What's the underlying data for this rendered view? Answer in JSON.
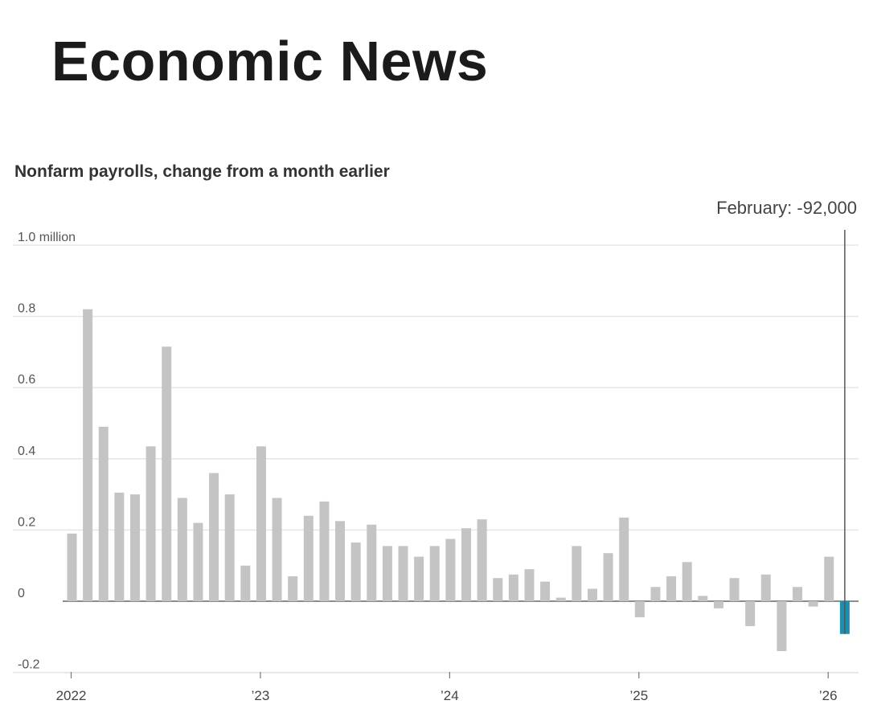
{
  "page": {
    "heading": "Economic News"
  },
  "chart_data": {
    "type": "bar",
    "title": "Nonfarm payrolls, change from a month earlier",
    "xlabel": "",
    "ylabel": "",
    "ylim": [
      -0.2,
      1.0
    ],
    "yticks": [
      {
        "value": 1.0,
        "label": "1.0 million"
      },
      {
        "value": 0.8,
        "label": "0.8"
      },
      {
        "value": 0.6,
        "label": "0.6"
      },
      {
        "value": 0.4,
        "label": "0.4"
      },
      {
        "value": 0.2,
        "label": "0.2"
      },
      {
        "value": 0,
        "label": "0"
      },
      {
        "value": -0.2,
        "label": "-0.2"
      }
    ],
    "xticks": [
      {
        "index": 0,
        "label": "2022"
      },
      {
        "index": 12,
        "label": "’23"
      },
      {
        "index": 24,
        "label": "’24"
      },
      {
        "index": 36,
        "label": "’25"
      },
      {
        "index": 48,
        "label": "’26"
      }
    ],
    "categories": [
      "Jan 2022",
      "Feb 2022",
      "Mar 2022",
      "Apr 2022",
      "May 2022",
      "Jun 2022",
      "Jul 2022",
      "Aug 2022",
      "Sep 2022",
      "Oct 2022",
      "Nov 2022",
      "Dec 2022",
      "Jan 2023",
      "Feb 2023",
      "Mar 2023",
      "Apr 2023",
      "May 2023",
      "Jun 2023",
      "Jul 2023",
      "Aug 2023",
      "Sep 2023",
      "Oct 2023",
      "Nov 2023",
      "Dec 2023",
      "Jan 2024",
      "Feb 2024",
      "Mar 2024",
      "Apr 2024",
      "May 2024",
      "Jun 2024",
      "Jul 2024",
      "Aug 2024",
      "Sep 2024",
      "Oct 2024",
      "Nov 2024",
      "Dec 2024",
      "Jan 2025",
      "Feb 2025",
      "Mar 2025",
      "Apr 2025",
      "May 2025",
      "Jun 2025",
      "Jul 2025",
      "Aug 2025",
      "Sep 2025",
      "Oct 2025",
      "Nov 2025",
      "Dec 2025",
      "Jan 2026",
      "Feb 2026"
    ],
    "values": [
      0.19,
      0.82,
      0.49,
      0.305,
      0.3,
      0.435,
      0.715,
      0.29,
      0.22,
      0.36,
      0.3,
      0.1,
      0.435,
      0.29,
      0.07,
      0.24,
      0.28,
      0.225,
      0.165,
      0.215,
      0.155,
      0.155,
      0.125,
      0.155,
      0.175,
      0.205,
      0.23,
      0.065,
      0.075,
      0.09,
      0.055,
      0.01,
      0.155,
      0.035,
      0.135,
      0.235,
      -0.045,
      0.04,
      0.07,
      0.11,
      0.015,
      -0.02,
      0.065,
      -0.07,
      0.075,
      -0.14,
      0.04,
      -0.015,
      0.125,
      -0.092
    ],
    "highlight_index": 49,
    "colors": {
      "bar": "#c4c4c4",
      "highlight": "#1a8fb0",
      "grid": "#e6e6e6",
      "zero": "#666666",
      "marker": "#555555"
    },
    "annotation": {
      "text": "February: -92,000",
      "index": 49
    }
  }
}
